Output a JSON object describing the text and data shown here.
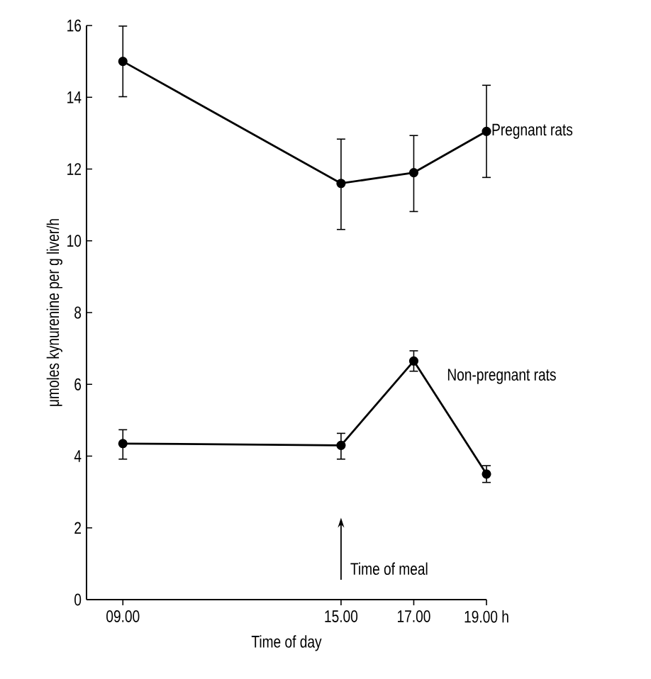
{
  "chart_data": {
    "type": "line",
    "xlabel": "Time of day",
    "ylabel": "μmoles kynurenine per g liver/h",
    "x": [
      9,
      15,
      17,
      19
    ],
    "series": [
      {
        "name": "Pregnant rats",
        "color": "#000000",
        "values": [
          15.0,
          11.6,
          11.9,
          13.05
        ],
        "errors": [
          [
            14.0,
            16.0
          ],
          [
            10.3,
            12.85
          ],
          [
            10.8,
            12.95
          ],
          [
            11.75,
            14.35
          ]
        ]
      },
      {
        "name": "Non-pregnant rats",
        "color": "#000000",
        "values": [
          4.35,
          4.3,
          6.65,
          3.5
        ],
        "errors": [
          [
            3.9,
            4.75
          ],
          [
            3.9,
            4.65
          ],
          [
            6.35,
            6.95
          ],
          [
            3.25,
            3.75
          ]
        ]
      }
    ],
    "xlim": [
      8,
      19
    ],
    "xticks": [
      {
        "value": 9,
        "label": "09.00"
      },
      {
        "value": 15,
        "label": "15.00"
      },
      {
        "value": 17,
        "label": "17.00"
      },
      {
        "value": 19,
        "label": "19.00 h"
      }
    ],
    "ylim": [
      0,
      16
    ],
    "yticks": [
      0,
      2,
      4,
      6,
      8,
      10,
      12,
      14,
      16
    ],
    "annotations": [
      "Time of meal"
    ],
    "grid": false,
    "marker": "circle",
    "line_style": "solid"
  }
}
